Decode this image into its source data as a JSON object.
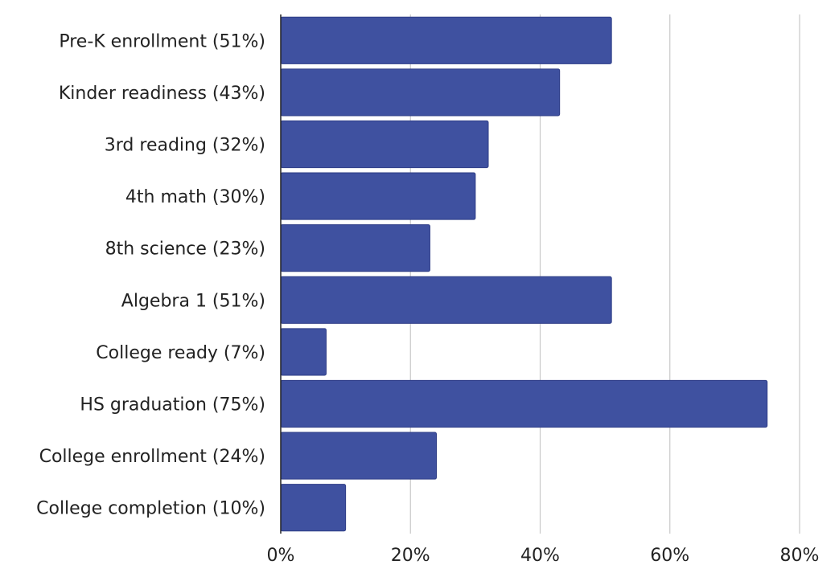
{
  "chart_data": {
    "type": "bar",
    "orientation": "horizontal",
    "title": "",
    "xlabel": "",
    "ylabel": "",
    "categories": [
      "Pre-K enrollment (51%)",
      "Kinder readiness (43%)",
      "3rd reading (32%)",
      "4th math (30%)",
      "8th science (23%)",
      "Algebra 1 (51%)",
      "College ready (7%)",
      "HS graduation (75%)",
      "College enrollment (24%)",
      "College completion (10%)"
    ],
    "values": [
      51,
      43,
      32,
      30,
      23,
      51,
      7,
      75,
      24,
      10
    ],
    "xlim": [
      0,
      80
    ],
    "x_ticks": [
      0,
      20,
      40,
      60,
      80
    ],
    "x_tick_labels": [
      "0%",
      "20%",
      "40%",
      "60%",
      "80%"
    ],
    "grid": "vertical",
    "legend": "none",
    "colors": {
      "bar_fill": "#3f51a0",
      "bar_stroke": "#2e3d86",
      "grid": "#c8c8c8",
      "axis": "#222222"
    }
  }
}
